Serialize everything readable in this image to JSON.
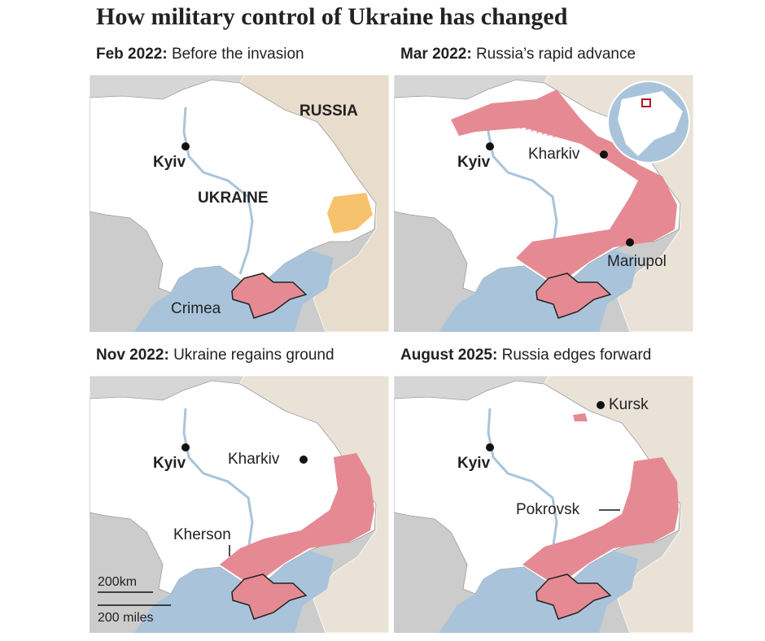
{
  "title": "How military control of Ukraine has changed",
  "panels": [
    {
      "date": "Feb 2022:",
      "caption": "Before the invasion",
      "labels": [
        "Kyiv",
        "RUSSIA",
        "UKRAINE",
        "Crimea"
      ]
    },
    {
      "date": "Mar 2022:",
      "caption": "Russia’s rapid advance",
      "labels": [
        "Kyiv",
        "Kharkiv",
        "Mariupol"
      ]
    },
    {
      "date": "Nov 2022:",
      "caption": "Ukraine regains ground",
      "labels": [
        "Kyiv",
        "Kharkiv",
        "Kherson"
      ]
    },
    {
      "date": "August 2025:",
      "caption": "Russia edges forward",
      "labels": [
        "Kyiv",
        "Kursk",
        "Pokrovsk"
      ]
    }
  ],
  "scale": {
    "km": "200km",
    "miles": "200 miles"
  }
}
